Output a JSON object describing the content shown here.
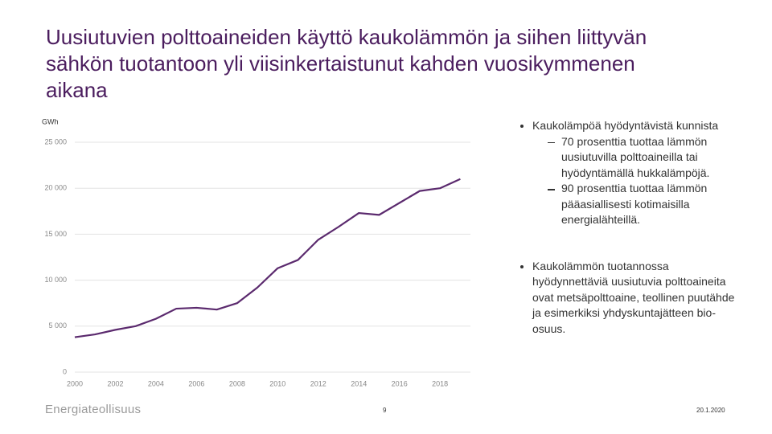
{
  "title": "Uusiutuvien polttoaineiden käyttö kaukolämmön ja siihen liittyvän sähkön tuotantoon yli viisinkertaistunut kahden vuosikymmenen aikana",
  "chart_data": {
    "type": "line",
    "ylabel": "GWh",
    "x": [
      2000,
      2001,
      2002,
      2003,
      2004,
      2005,
      2006,
      2007,
      2008,
      2009,
      2010,
      2011,
      2012,
      2013,
      2014,
      2015,
      2016,
      2017,
      2018,
      2019
    ],
    "values": [
      3800,
      4100,
      4600,
      5000,
      5800,
      6900,
      7000,
      6800,
      7500,
      9200,
      11300,
      12200,
      14400,
      15800,
      17300,
      17100,
      18400,
      19700,
      20000,
      21000
    ],
    "color": "#5b2a6e",
    "xlim": [
      2000,
      2019.5
    ],
    "xticks": [
      2000,
      2002,
      2004,
      2006,
      2008,
      2010,
      2012,
      2014,
      2016,
      2018
    ],
    "ylim": [
      0,
      25000
    ],
    "yticks": [
      0,
      {
        "value": 5000,
        "label": "5 000"
      },
      {
        "value": 10000,
        "label": "10 000"
      },
      {
        "value": 15000,
        "label": "15 000"
      },
      {
        "value": 20000,
        "label": "20 000"
      },
      {
        "value": 25000,
        "label": "25 000"
      }
    ],
    "grid": true
  },
  "bullets": [
    {
      "text": "Kaukolämpöä hyödyntävistä kunnista",
      "sub": [
        "70 prosenttia tuottaa lämmön uusiutuvilla polttoaineilla tai hyödyntämällä hukkalämpöjä.",
        "90 prosenttia tuottaa lämmön pääasiallisesti kotimaisilla energialähteillä."
      ]
    },
    {
      "text": "Kaukolämmön tuotannossa hyödynnettäviä uusiutuvia polttoaineita ovat metsäpolttoaine, teollinen puutähde ja esimerkiksi yhdyskuntajätteen bio-osuus.",
      "sub": []
    }
  ],
  "footer": {
    "logo": "Energiateollisuus",
    "page": 9,
    "date": "20.1.2020"
  }
}
